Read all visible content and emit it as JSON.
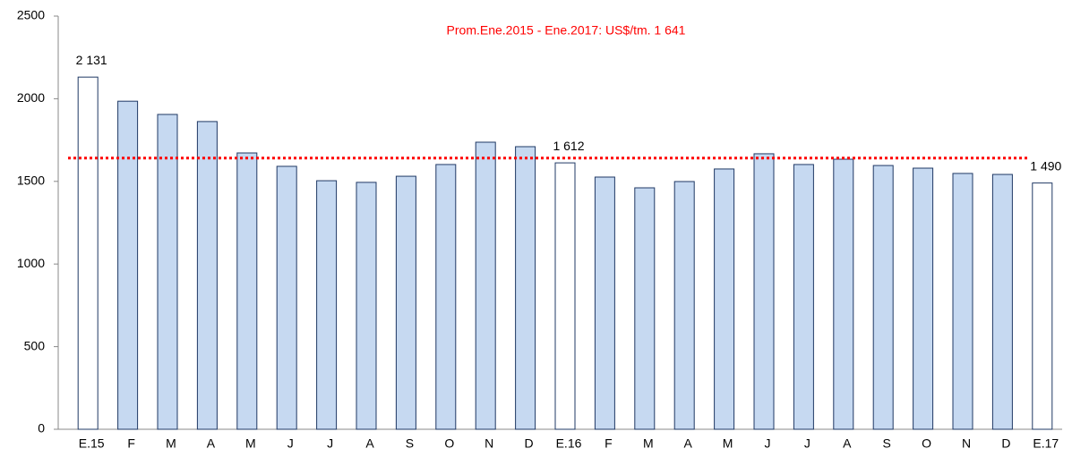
{
  "chart_data": {
    "type": "bar",
    "categories": [
      "E.15",
      "F",
      "M",
      "A",
      "M",
      "J",
      "J",
      "A",
      "S",
      "O",
      "N",
      "D",
      "E.16",
      "F",
      "M",
      "A",
      "M",
      "J",
      "J",
      "A",
      "S",
      "O",
      "N",
      "D",
      "E.17"
    ],
    "values": [
      2131,
      1985,
      1905,
      1862,
      1672,
      1591,
      1504,
      1494,
      1531,
      1602,
      1737,
      1710,
      1612,
      1526,
      1461,
      1499,
      1575,
      1667,
      1602,
      1634,
      1596,
      1580,
      1548,
      1542,
      1490
    ],
    "value_labels": [
      "2 131",
      null,
      null,
      null,
      null,
      null,
      null,
      null,
      null,
      null,
      null,
      null,
      "1 612",
      null,
      null,
      null,
      null,
      null,
      null,
      null,
      null,
      null,
      null,
      null,
      "1 490"
    ],
    "colors": [
      "#ffffff",
      "#c6d9f1",
      "#c6d9f1",
      "#c6d9f1",
      "#c6d9f1",
      "#c6d9f1",
      "#c6d9f1",
      "#c6d9f1",
      "#c6d9f1",
      "#c6d9f1",
      "#c6d9f1",
      "#c6d9f1",
      "#ffffff",
      "#c6d9f1",
      "#c6d9f1",
      "#c6d9f1",
      "#c6d9f1",
      "#c6d9f1",
      "#c6d9f1",
      "#c6d9f1",
      "#c6d9f1",
      "#c6d9f1",
      "#c6d9f1",
      "#c6d9f1",
      "#ffffff"
    ],
    "border_color": "#1f3864",
    "ylim": [
      0,
      2500
    ],
    "yticks": [
      0,
      500,
      1000,
      1500,
      2000,
      2500
    ],
    "average_line": {
      "value": 1641,
      "label": "Prom.Ene.2015 - Ene.2017: US$/tm. 1 641",
      "color": "#ff0000"
    }
  }
}
